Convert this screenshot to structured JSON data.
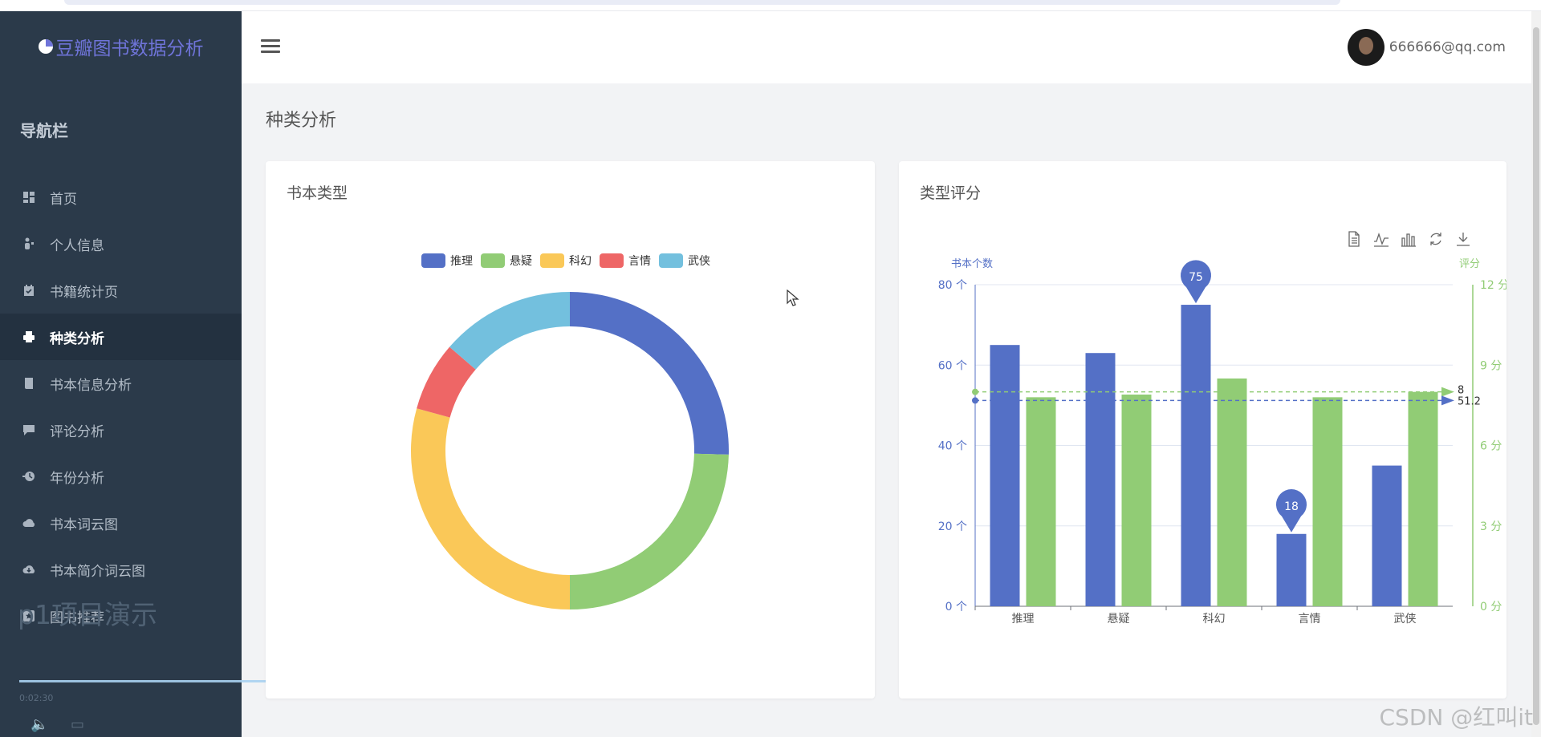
{
  "brand": {
    "title": "豆瓣图书数据分析"
  },
  "sidebar": {
    "heading": "导航栏",
    "items": [
      {
        "label": "首页",
        "icon": "dashboard-icon",
        "active": false
      },
      {
        "label": "个人信息",
        "icon": "user-icon",
        "active": false
      },
      {
        "label": "书籍统计页",
        "icon": "calendar-check-icon",
        "active": false
      },
      {
        "label": "种类分析",
        "icon": "printer-icon",
        "active": true
      },
      {
        "label": "书本信息分析",
        "icon": "book-icon",
        "active": false
      },
      {
        "label": "评论分析",
        "icon": "comment-icon",
        "active": false
      },
      {
        "label": "年份分析",
        "icon": "history-icon",
        "active": false
      },
      {
        "label": "书本词云图",
        "icon": "cloud-icon",
        "active": false
      },
      {
        "label": "书本简介词云图",
        "icon": "cloud-download-icon",
        "active": false
      },
      {
        "label": "图书推荐",
        "icon": "star-square-icon",
        "active": false
      }
    ]
  },
  "video": {
    "title": "p1项目演示",
    "time": "0:02:30"
  },
  "header": {
    "user_email": "666666@qq.com"
  },
  "page": {
    "title": "种类分析"
  },
  "donut_card": {
    "title": "书本类型"
  },
  "bar_card": {
    "title": "类型评分"
  },
  "watermark": "CSDN @红叫it",
  "colors": {
    "blue": "#5470c6",
    "green": "#91cc75",
    "yellow": "#fac858",
    "red": "#ee6666",
    "cyan": "#73c0de"
  },
  "chart_data": [
    {
      "type": "pie",
      "subtype": "donut",
      "legend": [
        "推理",
        "悬疑",
        "科幻",
        "言情",
        "武侠"
      ],
      "values": [
        65,
        63,
        75,
        18,
        35
      ],
      "legend_position": "top-center"
    },
    {
      "type": "bar",
      "categories": [
        "推理",
        "悬疑",
        "科幻",
        "言情",
        "武侠"
      ],
      "series": [
        {
          "name": "书本个数",
          "axis": "left",
          "values": [
            65,
            63,
            75,
            18,
            35
          ]
        },
        {
          "name": "评分",
          "axis": "right",
          "values": [
            7.8,
            7.9,
            8.5,
            7.8,
            8.0
          ]
        }
      ],
      "ylabel_left": "书本个数",
      "ylabel_right": "评分",
      "ylim_left": [
        0,
        80
      ],
      "ylim_right": [
        0,
        12
      ],
      "yticks_left": [
        "0 个",
        "20 个",
        "40 个",
        "60 个",
        "80 个"
      ],
      "yticks_right": [
        "0 分",
        "3 分",
        "6 分",
        "9 分",
        "12 分"
      ],
      "markpoints": [
        {
          "label": "75"
        },
        {
          "label": "18"
        }
      ],
      "marklines": [
        {
          "label": "8",
          "axis": "right",
          "value": 8
        },
        {
          "label": "51.2",
          "axis": "left",
          "value": 51.2
        }
      ],
      "toolbox": [
        "data-view-icon",
        "line-chart-icon",
        "bar-chart-icon",
        "restore-icon",
        "save-image-icon"
      ]
    }
  ]
}
